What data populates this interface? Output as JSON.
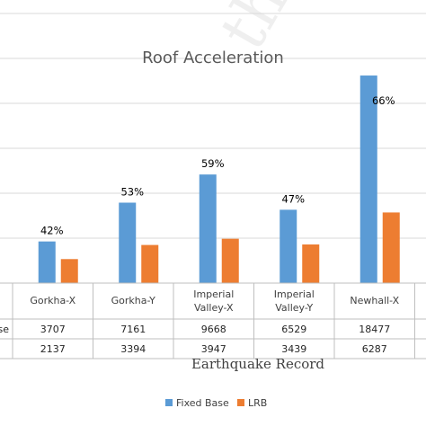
{
  "watermark": "the",
  "colors": {
    "fixed_base": "#5B9BD5",
    "lrb": "#ED7D31",
    "grid": "#d9d9d9",
    "table_border": "#bfbfbf"
  },
  "chart_data": {
    "type": "bar",
    "title": "Roof Acceleration",
    "xlabel": "Earthquake Record",
    "ylabel": "",
    "categories": [
      [
        "Gorkha-X"
      ],
      [
        "Gorkha-Y"
      ],
      [
        "Imperial",
        "Valley-X"
      ],
      [
        "Imperial",
        "Valley-Y"
      ],
      [
        "Newhall-X"
      ]
    ],
    "series": [
      {
        "name": "Fixed Base",
        "row_label": "se",
        "values": [
          3707,
          7161,
          9668,
          6529,
          18477
        ]
      },
      {
        "name": "LRB",
        "row_label": "",
        "values": [
          2137,
          3394,
          3947,
          3439,
          6287
        ]
      }
    ],
    "percent_labels": [
      "42%",
      "53%",
      "59%",
      "47%",
      "66%"
    ],
    "ylim": [
      0,
      24000
    ],
    "grid": true,
    "legend": "bottom",
    "data_table": true
  }
}
